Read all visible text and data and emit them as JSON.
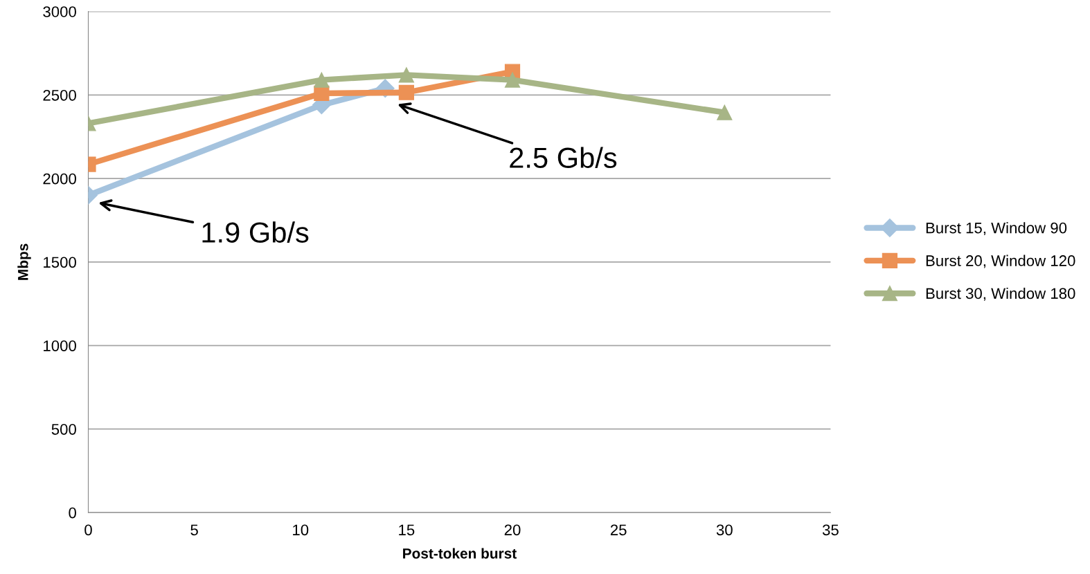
{
  "chart_data": {
    "type": "line",
    "xlabel": "Post-token burst",
    "ylabel": "Mbps",
    "xlim": [
      0,
      35
    ],
    "xticks": [
      0,
      5,
      10,
      15,
      20,
      25,
      30,
      35
    ],
    "ylim": [
      0,
      3000
    ],
    "yticks": [
      0,
      500,
      1000,
      1500,
      2000,
      2500,
      3000
    ],
    "grid": "y",
    "legend": "right",
    "line_style": "solid",
    "series": [
      {
        "name": "Burst 15, Window 90",
        "color": "#a5c3de",
        "marker": "diamond",
        "x": [
          0,
          11,
          14
        ],
        "values": [
          1900,
          2440,
          2540
        ]
      },
      {
        "name": "Burst 20, Window 120",
        "color": "#ec9155",
        "marker": "square",
        "x": [
          0,
          11,
          15,
          20
        ],
        "values": [
          2085,
          2510,
          2515,
          2640
        ]
      },
      {
        "name": "Burst 30, Window 180",
        "color": "#a7b586",
        "marker": "triangle",
        "x": [
          0,
          11,
          15,
          20,
          30
        ],
        "values": [
          2330,
          2590,
          2620,
          2590,
          2395
        ]
      }
    ],
    "annotations": [
      "1.9 Gb/s",
      "2.5 Gb/s"
    ]
  }
}
